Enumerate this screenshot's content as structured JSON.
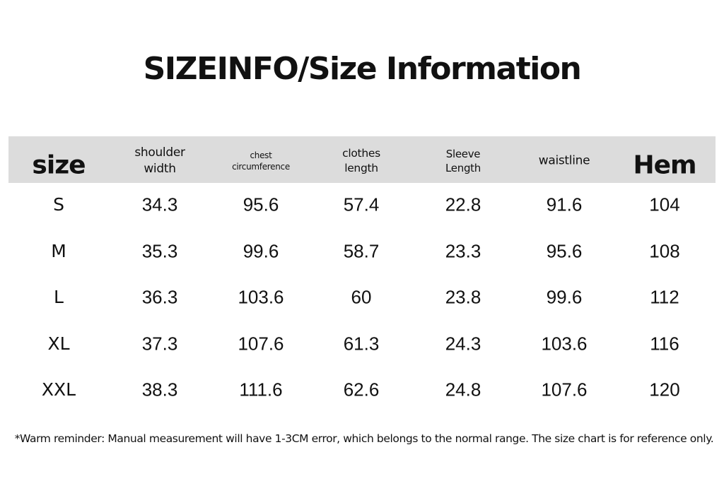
{
  "title": "SIZEINFO/Size Information",
  "table": {
    "header": [
      [
        "size"
      ],
      [
        "shoulder",
        "width"
      ],
      [
        "chest",
        "circumference"
      ],
      [
        "clothes",
        "length"
      ],
      [
        "Sleeve",
        "Length"
      ],
      [
        "waistline"
      ],
      [
        "Hem"
      ]
    ],
    "rows": [
      [
        "S",
        34.3,
        95.6,
        57.4,
        22.8,
        91.6,
        104
      ],
      [
        "M",
        35.3,
        99.6,
        58.7,
        23.3,
        95.6,
        108
      ],
      [
        "L",
        36.3,
        103.6,
        60,
        23.8,
        99.6,
        112
      ],
      [
        "XL",
        37.3,
        107.6,
        61.3,
        24.3,
        103.6,
        116
      ],
      [
        "XXL",
        38.3,
        111.6,
        62.6,
        24.8,
        107.6,
        120
      ]
    ]
  },
  "footnote": "*Warm reminder: Manual measurement will have 1-3CM error, which belongs to the normal range. The size chart is for reference only."
}
